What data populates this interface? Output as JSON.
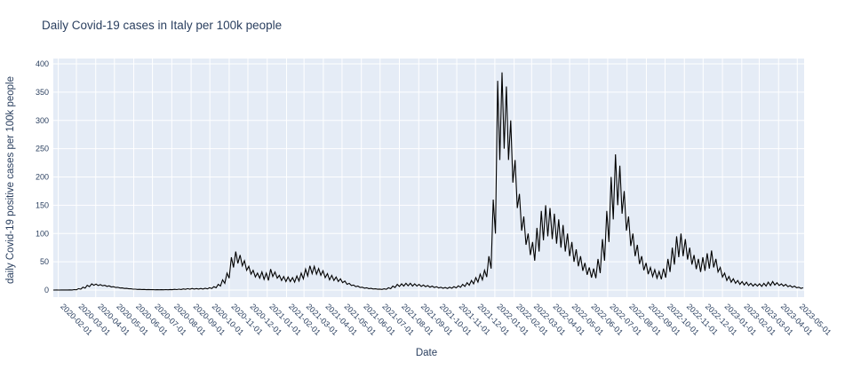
{
  "colors": {
    "paper_bg": "#ffffff",
    "plot_bg": "#e5ecf6",
    "grid": "#ffffff",
    "line": "#000000",
    "text": "#2a3f5f"
  },
  "chart_data": {
    "type": "line",
    "title": "Daily Covid-19 cases in Italy per 100k people",
    "xlabel": "Date",
    "ylabel": "daily Covid-19 positive cases per 100k people",
    "ylim": [
      0,
      400
    ],
    "xlim": [
      "2020-01-24",
      "2023-05-12"
    ],
    "grid": true,
    "legend": "none",
    "y_tick_labels": [
      "0",
      "50",
      "100",
      "150",
      "200",
      "250",
      "300",
      "350",
      "400"
    ],
    "y_ticks": [
      0,
      50,
      100,
      150,
      200,
      250,
      300,
      350,
      400
    ],
    "x_tick_labels": [
      "2020-02-01",
      "2020-03-01",
      "2020-04-01",
      "2020-05-01",
      "2020-06-01",
      "2020-07-01",
      "2020-08-01",
      "2020-09-01",
      "2020-10-01",
      "2020-11-01",
      "2020-12-01",
      "2021-01-01",
      "2021-02-01",
      "2021-03-01",
      "2021-04-01",
      "2021-05-01",
      "2021-06-01",
      "2021-07-01",
      "2021-08-01",
      "2021-09-01",
      "2021-10-01",
      "2021-11-01",
      "2021-12-01",
      "2022-01-01",
      "2022-02-01",
      "2022-03-01",
      "2022-04-01",
      "2022-05-01",
      "2022-06-01",
      "2022-07-01",
      "2022-08-01",
      "2022-09-01",
      "2022-10-01",
      "2022-11-01",
      "2022-12-01",
      "2023-01-01",
      "2023-02-01",
      "2023-03-01",
      "2023-04-01",
      "2023-05-01"
    ],
    "series_name": "daily Covid-19 positive cases per 100k people",
    "series_description": "single black line of daily values with strong weekly oscillation; encoded below as a weekly high/low envelope read from the plot",
    "week0_start": "2020-01-27",
    "weekly_high": [
      0.1,
      0.15,
      0.2,
      0.3,
      0.8,
      2.5,
      5,
      8.5,
      11,
      10.5,
      9.5,
      8.5,
      7.5,
      6,
      4.8,
      3.8,
      3,
      2.2,
      1.6,
      1.3,
      1.1,
      0.9,
      0.8,
      0.7,
      0.7,
      0.8,
      1,
      1.3,
      1.6,
      2.1,
      2.5,
      2.8,
      2.7,
      2.8,
      3.2,
      4,
      6,
      10,
      18,
      30,
      58,
      68,
      62,
      52,
      42,
      35,
      30,
      32,
      30,
      37,
      32,
      26,
      24,
      23,
      22,
      25,
      30,
      37,
      43,
      42,
      38,
      34,
      29,
      26,
      23,
      20,
      16,
      12,
      9,
      7,
      5,
      4,
      3,
      2.2,
      1.8,
      2.2,
      4,
      7,
      10,
      11,
      12,
      12,
      11,
      10,
      9,
      8,
      7,
      6,
      5,
      4.5,
      5,
      6,
      7.5,
      10,
      13,
      17,
      22,
      28,
      35,
      60,
      160,
      370,
      385,
      360,
      300,
      230,
      170,
      130,
      100,
      85,
      110,
      140,
      150,
      145,
      135,
      125,
      115,
      100,
      85,
      72,
      60,
      48,
      40,
      38,
      55,
      90,
      140,
      200,
      240,
      220,
      175,
      130,
      100,
      80,
      60,
      48,
      40,
      36,
      33,
      38,
      55,
      75,
      95,
      100,
      90,
      75,
      62,
      55,
      58,
      65,
      70,
      55,
      40,
      30,
      24,
      20,
      17,
      15,
      14,
      12,
      11,
      11,
      12,
      14,
      15,
      13,
      11,
      10,
      8,
      7,
      5,
      4
    ],
    "weekly_low": [
      0.05,
      0.08,
      0.1,
      0.15,
      0.4,
      1.5,
      3.5,
      6,
      8.5,
      8,
      7.5,
      6.5,
      5.5,
      4.5,
      3.6,
      2.8,
      2.2,
      1.5,
      1.1,
      0.9,
      0.7,
      0.6,
      0.5,
      0.4,
      0.4,
      0.5,
      0.6,
      0.8,
      1,
      1.3,
      1.6,
      1.8,
      1.7,
      1.8,
      2.1,
      2.6,
      4,
      7,
      12,
      21,
      40,
      47,
      43,
      35,
      28,
      23,
      21,
      19,
      17,
      24,
      21,
      17,
      15,
      15,
      14,
      16,
      20,
      25,
      29,
      28,
      26,
      22,
      18,
      17,
      15,
      13,
      10,
      8,
      6,
      4.5,
      3.3,
      2.5,
      1.9,
      1.4,
      1.1,
      1.3,
      2.3,
      4.5,
      6.5,
      7,
      7.5,
      7,
      7,
      6.5,
      6,
      5,
      4.5,
      3.8,
      3.2,
      2.8,
      3.2,
      3.8,
      4.8,
      6.5,
      8.5,
      11,
      14,
      18,
      23,
      38,
      100,
      230,
      250,
      230,
      190,
      145,
      105,
      80,
      62,
      52,
      68,
      88,
      95,
      90,
      82,
      75,
      68,
      60,
      50,
      42,
      34,
      27,
      22,
      21,
      30,
      52,
      85,
      125,
      150,
      135,
      105,
      78,
      60,
      46,
      35,
      28,
      24,
      21,
      19,
      22,
      32,
      45,
      58,
      60,
      54,
      45,
      37,
      32,
      34,
      38,
      40,
      32,
      23,
      17,
      14,
      12,
      10,
      9,
      8,
      7,
      7,
      6.5,
      7,
      8,
      9,
      8,
      7,
      6,
      5,
      4,
      3,
      2.5
    ]
  }
}
